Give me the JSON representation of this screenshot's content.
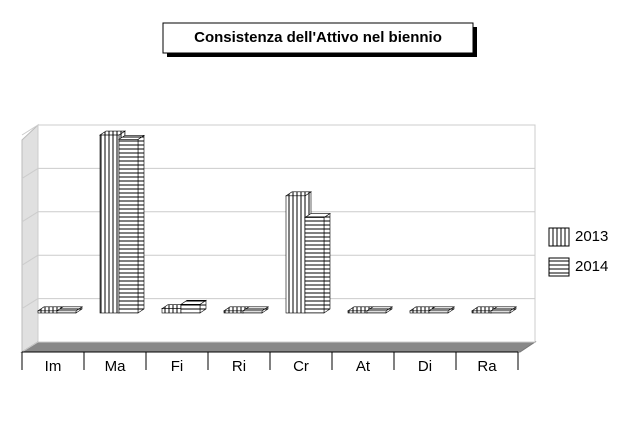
{
  "chart_data": {
    "type": "bar3d",
    "title": "Consistenza dell'Attivo nel biennio",
    "categories": [
      "Im",
      "Ma",
      "Fi",
      "Ri",
      "Cr",
      "At",
      "Di",
      "Ra"
    ],
    "series": [
      {
        "name": "2013",
        "color": "#000000",
        "values": [
          0.05,
          4.1,
          0.1,
          0.05,
          2.7,
          0.05,
          0.05,
          0.05
        ]
      },
      {
        "name": "2014",
        "color": "#000000",
        "values": [
          0.05,
          4.0,
          0.2,
          0.05,
          2.2,
          0.05,
          0.05,
          0.05
        ]
      }
    ],
    "ylim": [
      0,
      5
    ],
    "yticks": [
      0,
      1,
      2,
      3,
      4,
      5
    ],
    "grid": true,
    "legend": "right"
  }
}
